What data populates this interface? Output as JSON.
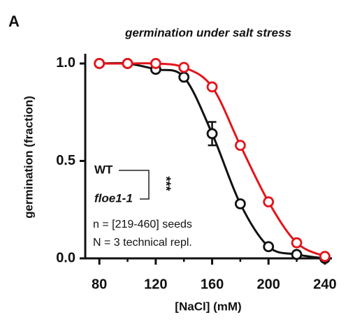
{
  "chart_data": {
    "type": "line",
    "panel_label": "A",
    "title": "germination under salt stress",
    "x_label": "[NaCl] (mM)",
    "y_label": "germination (fraction)",
    "x": [
      80,
      100,
      120,
      140,
      160,
      180,
      200,
      220,
      240
    ],
    "series": [
      {
        "name": "WT",
        "color": "#111111",
        "values": [
          1.0,
          1.0,
          0.97,
          0.93,
          0.64,
          0.28,
          0.06,
          0.02,
          0.0
        ],
        "errors": [
          null,
          null,
          null,
          null,
          0.06,
          null,
          null,
          null,
          null
        ]
      },
      {
        "name": "floe1-1",
        "color": "#e3151b",
        "values": [
          1.0,
          1.0,
          1.0,
          0.98,
          0.88,
          0.58,
          0.29,
          0.08,
          0.01
        ]
      }
    ],
    "xlim": [
      70,
      245
    ],
    "ylim": [
      0,
      1.05
    ],
    "xticks": [
      80,
      120,
      160,
      200,
      240
    ],
    "xminorticks": [
      100,
      140,
      180,
      220
    ],
    "yticks": [
      {
        "value": 0,
        "label": "0.0"
      },
      0.5,
      {
        "value": 1,
        "label": "1.0"
      }
    ],
    "significance": "***",
    "annotations": [
      "n = [219-460] seeds",
      "N = 3 technical repl."
    ]
  }
}
